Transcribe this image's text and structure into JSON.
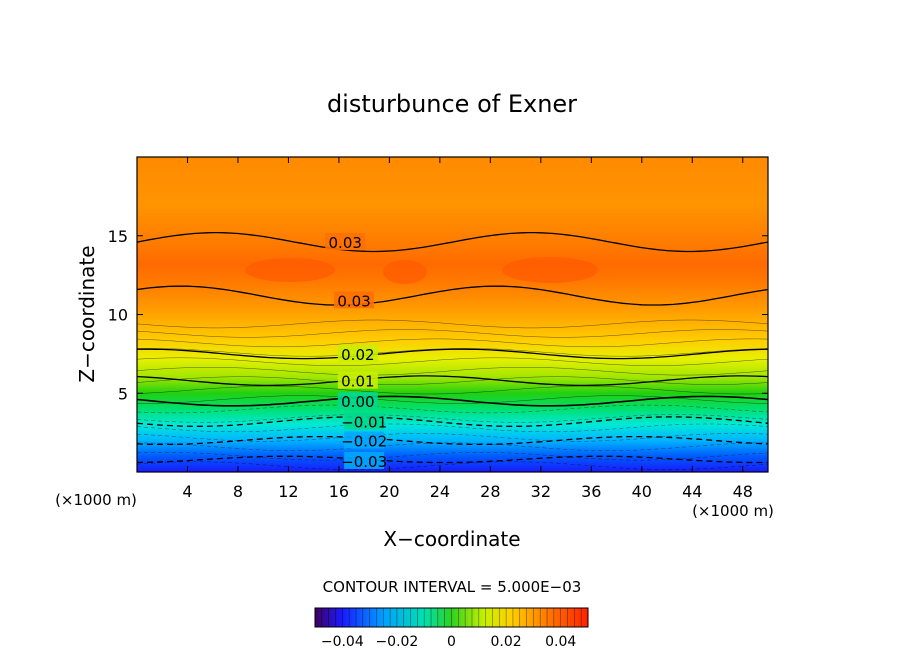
{
  "chart_data": {
    "type": "contour",
    "title": "disturbunce of Exner",
    "xlabel": "X−coordinate",
    "ylabel": "Z−coordinate",
    "x_unit_left": "(×1000 m)",
    "x_unit_right": "(×1000 m)",
    "xlim": [
      0,
      50
    ],
    "ylim": [
      0,
      20
    ],
    "x_ticks": [
      4,
      8,
      12,
      16,
      20,
      24,
      28,
      32,
      36,
      40,
      44,
      48
    ],
    "y_ticks": [
      5,
      10,
      15
    ],
    "contour_interval_text": "CONTOUR INTERVAL = 5.000E−03",
    "colorbar": {
      "min": -0.05,
      "max": 0.05,
      "ticks": [
        "−0.04",
        "−0.02",
        "0",
        "0.02",
        "0.04"
      ],
      "tick_values": [
        -0.04,
        -0.02,
        0,
        0.02,
        0.04
      ]
    },
    "contour_labels": [
      {
        "text": "0.03",
        "x": 16.5,
        "z": 14.6
      },
      {
        "text": "0.03",
        "x": 17.2,
        "z": 10.9
      },
      {
        "text": "0.02",
        "x": 17.5,
        "z": 7.5
      },
      {
        "text": "0.01",
        "x": 17.5,
        "z": 5.8
      },
      {
        "text": "0.00",
        "x": 17.5,
        "z": 4.5
      },
      {
        "text": "−0.01",
        "x": 18.0,
        "z": 3.2
      },
      {
        "text": "−0.02",
        "x": 18.0,
        "z": 2.0
      },
      {
        "text": "−0.03",
        "x": 18.0,
        "z": 0.7
      }
    ],
    "contour_levels": [
      {
        "value": 0.03,
        "z0": 14.6,
        "amp": 0.6
      },
      {
        "value": 0.03,
        "z0": 11.2,
        "amp": 0.6
      },
      {
        "value": 0.02,
        "z0": 7.5,
        "amp": 0.3
      },
      {
        "value": 0.01,
        "z0": 5.8,
        "amp": 0.3
      },
      {
        "value": 0.0,
        "z0": 4.5,
        "amp": 0.3
      },
      {
        "value": -0.01,
        "z0": 3.2,
        "amp": 0.3
      },
      {
        "value": -0.02,
        "z0": 2.0,
        "amp": 0.25
      },
      {
        "value": -0.03,
        "z0": 0.8,
        "amp": 0.2
      }
    ]
  }
}
